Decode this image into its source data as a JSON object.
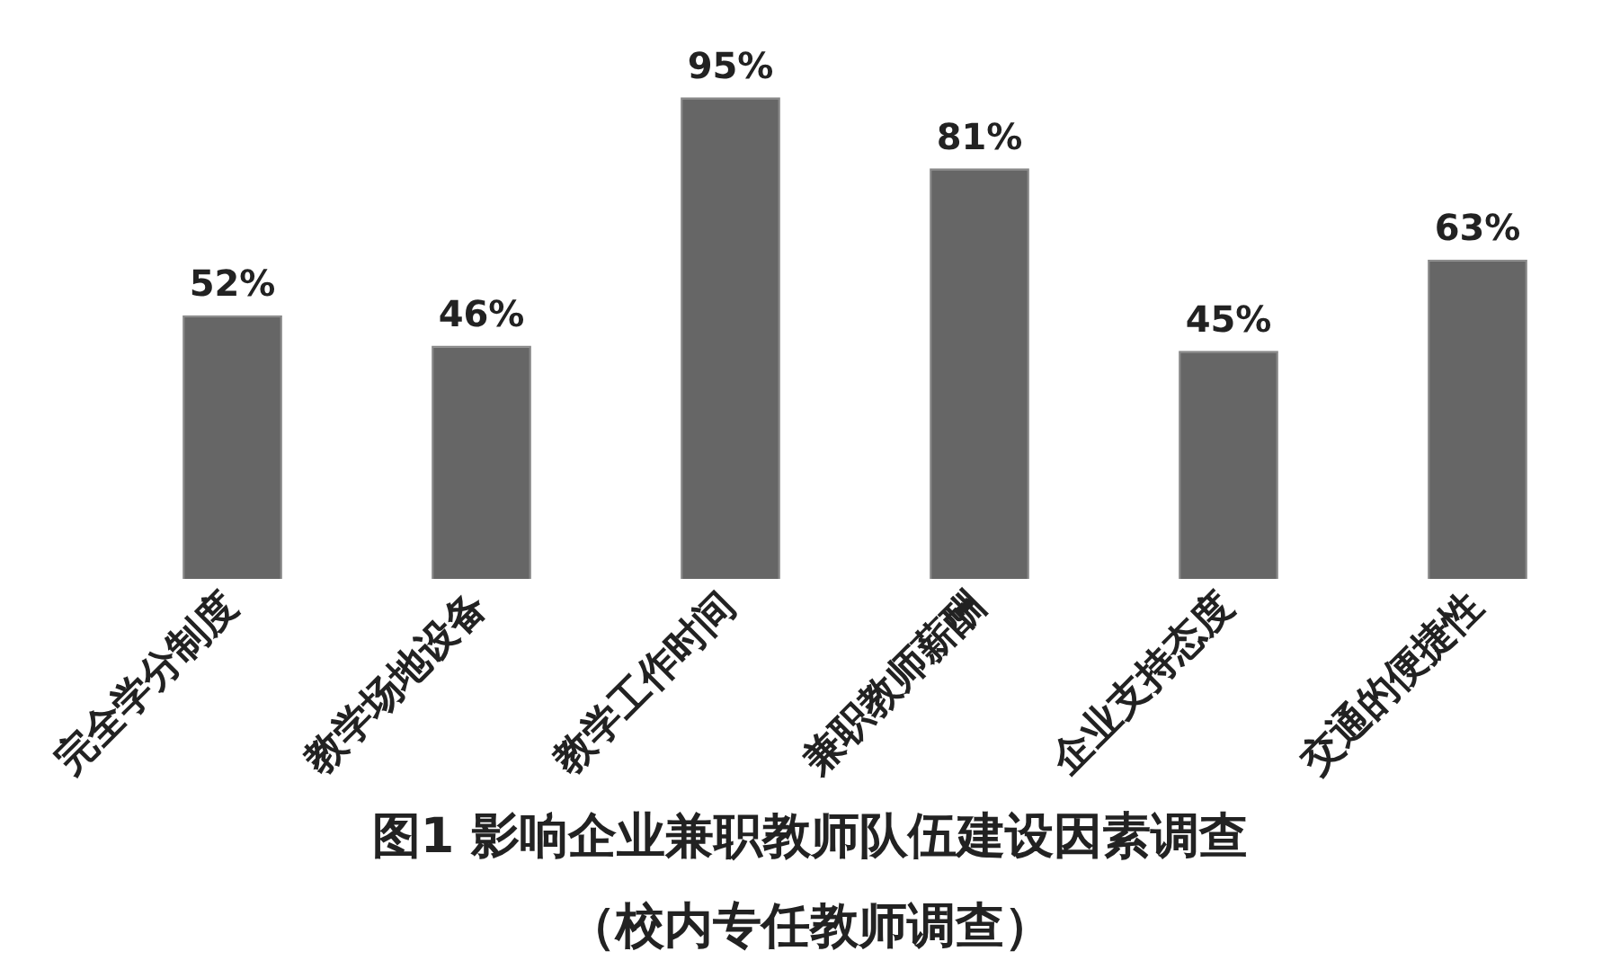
{
  "chart_data": {
    "type": "bar",
    "title": "图1 影响企业兼职教师队伍建设因素调查",
    "subtitle": "（校内专任教师调查）",
    "categories": [
      "完全学分制度",
      "教学场地设备",
      "教学工作时间",
      "兼职教师薪酬",
      "企业支持态度",
      "交通的便捷性"
    ],
    "values": [
      52,
      46,
      95,
      81,
      45,
      63
    ],
    "color": "#666666",
    "data_labels": true,
    "value_labels": [
      "52%",
      "46%",
      "95%",
      "81%",
      "45%",
      "63%"
    ],
    "grid": false,
    "legend": false
  }
}
